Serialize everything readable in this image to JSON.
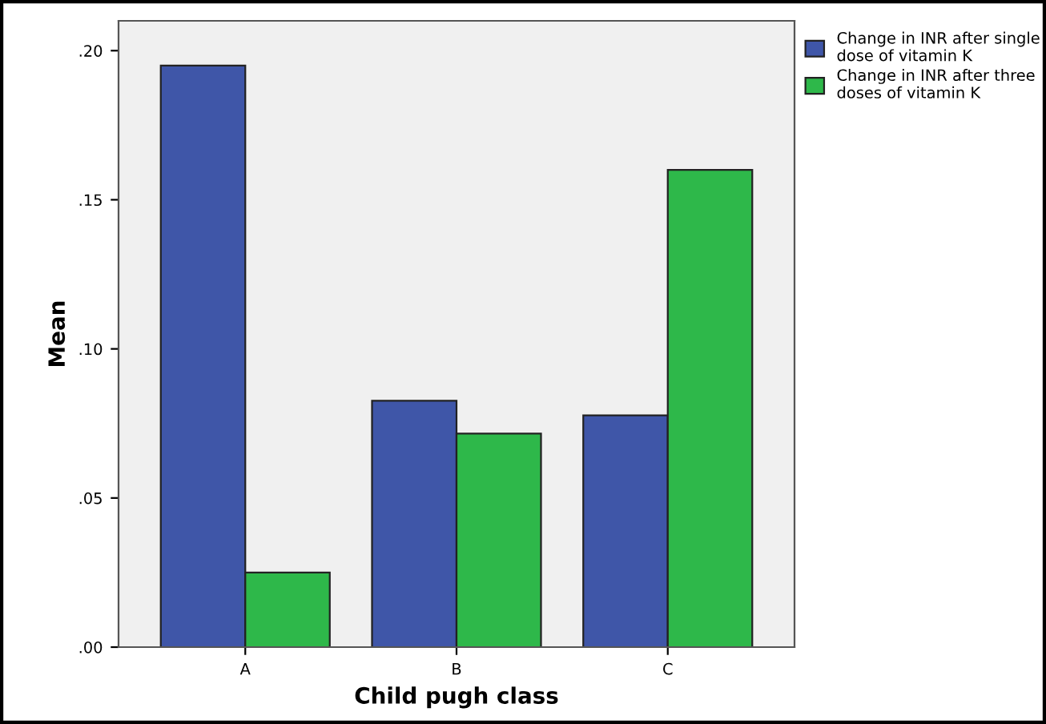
{
  "chart_data": {
    "type": "bar",
    "xlabel": "Child pugh class",
    "ylabel": "Mean",
    "categories": [
      "A",
      "B",
      "C"
    ],
    "series": [
      {
        "name": "Change in INR after single\ndose of vitamin K",
        "color": "#3f56a8",
        "values": [
          0.195,
          0.0826,
          0.0777
        ]
      },
      {
        "name": "Change in INR after three\ndoses of vitamin K",
        "color": "#2eb84a",
        "values": [
          0.025,
          0.0716,
          0.16
        ]
      }
    ],
    "ylim": [
      0,
      0.21
    ],
    "yticks": [
      {
        "value": 0,
        "label": ".00"
      },
      {
        "value": 0.05,
        "label": ".05"
      },
      {
        "value": 0.1,
        "label": ".10"
      },
      {
        "value": 0.15,
        "label": ".15"
      },
      {
        "value": 0.2,
        "label": ".20"
      }
    ],
    "grid": false,
    "legend": "top right"
  }
}
